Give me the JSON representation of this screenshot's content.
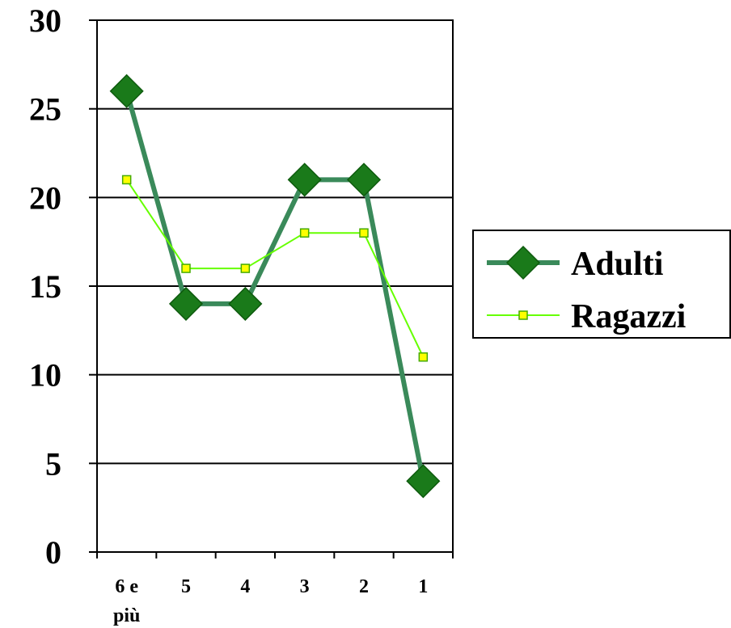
{
  "chart_data": {
    "type": "line",
    "categories": [
      "6 e più",
      "5",
      "4",
      "3",
      "2",
      "1"
    ],
    "category_lines": [
      [
        "6 e",
        "più"
      ],
      [
        "5"
      ],
      [
        "4"
      ],
      [
        "3"
      ],
      [
        "2"
      ],
      [
        "1"
      ]
    ],
    "series": [
      {
        "name": "Adulti",
        "values": [
          26,
          14,
          14,
          21,
          21,
          4
        ],
        "line_color": "#3a8a5a",
        "marker_color": "#1a7a1a",
        "marker": "diamond"
      },
      {
        "name": "Ragazzi",
        "values": [
          21,
          16,
          16,
          18,
          18,
          11
        ],
        "line_color": "#66ff00",
        "marker_color": "#ffff00",
        "marker": "square"
      }
    ],
    "ylim": [
      0,
      30
    ],
    "yticks": [
      0,
      5,
      10,
      15,
      20,
      25,
      30
    ],
    "grid": true,
    "legend": "right",
    "title": "",
    "xlabel": "",
    "ylabel": ""
  }
}
